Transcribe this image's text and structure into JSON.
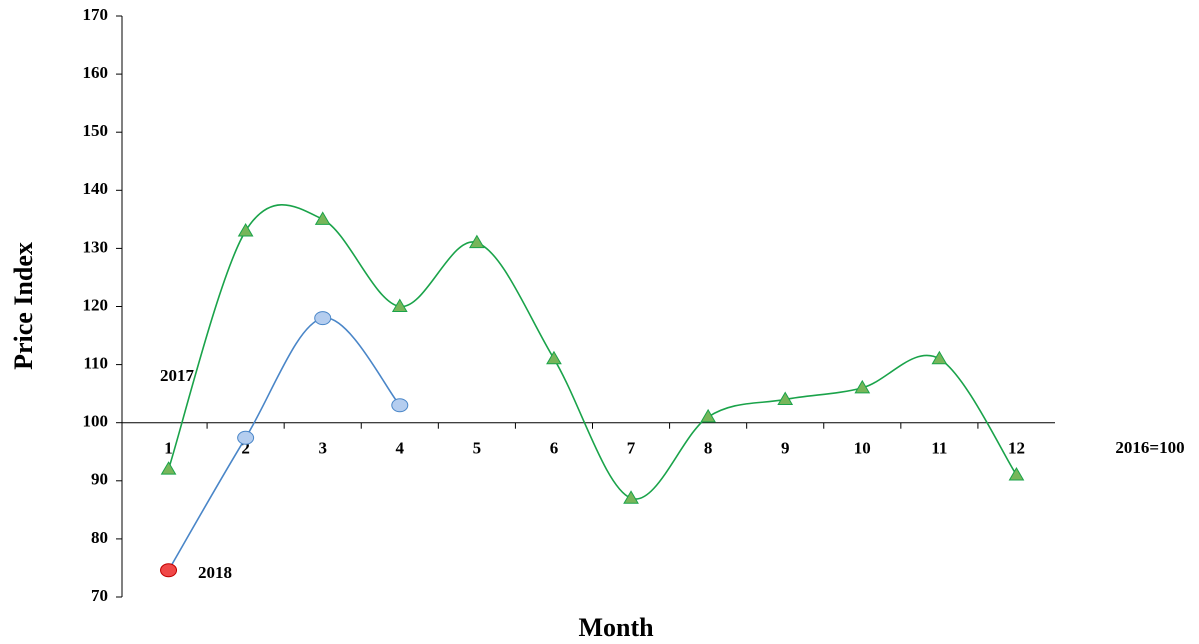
{
  "chart_data": {
    "type": "line",
    "x_label": "Month",
    "y_label": "Price Index",
    "categories": [
      "1",
      "2",
      "3",
      "4",
      "5",
      "6",
      "7",
      "8",
      "9",
      "10",
      "11",
      "12"
    ],
    "series": [
      {
        "name": "2017",
        "color": "#1aa34a",
        "marker": "triangle",
        "marker_color": "#77b65a",
        "values": [
          92,
          133,
          135,
          120,
          131,
          111,
          87,
          101,
          104,
          106,
          111,
          91
        ]
      },
      {
        "name": "2018",
        "color": "#4a86c8",
        "marker": "circle",
        "marker_color": "#b4cdef",
        "first_point_color": "#f04848",
        "values": [
          74.6,
          97.4,
          118,
          103,
          null,
          null,
          null,
          null,
          null,
          null,
          null,
          null
        ]
      }
    ],
    "annotations": [
      "2016=100"
    ],
    "smooth": true,
    "ylim": [
      70,
      170
    ],
    "yticks": [
      70,
      80,
      90,
      100,
      110,
      120,
      130,
      140,
      150,
      160,
      170
    ],
    "x_axis_at": 100
  }
}
